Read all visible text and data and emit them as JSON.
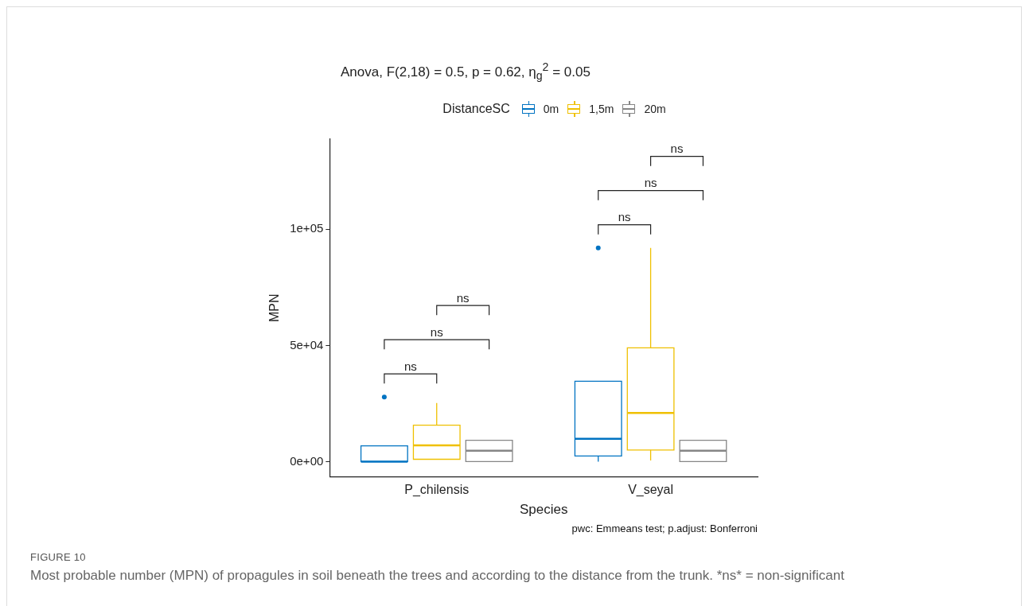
{
  "chart_data": {
    "type": "box",
    "title": "Anova, F(2,18) = 0.5, p = 0.62, η$_{g}$$^{2}$ = 0.05",
    "xlabel": "Species",
    "ylabel": "MPN",
    "legend_title": "DistanceSC",
    "legend": "top",
    "grid": false,
    "categories": [
      "P_chilensis",
      "V_seyal"
    ],
    "series": [
      {
        "name": "0m",
        "color": "#0073c2",
        "boxes": [
          {
            "low": 0,
            "q1": 0,
            "median": 0,
            "q3": 6750,
            "high": 6750,
            "outliers": [
              27800
            ]
          },
          {
            "low": 0,
            "q1": 2400,
            "median": 9800,
            "q3": 34600,
            "high": 34600,
            "outliers": [
              92000
            ]
          }
        ]
      },
      {
        "name": "1,5m",
        "color": "#efc000",
        "boxes": [
          {
            "low": 1000,
            "q1": 1000,
            "median": 7000,
            "q3": 15700,
            "high": 25200
          },
          {
            "low": 500,
            "q1": 5000,
            "median": 20900,
            "q3": 49000,
            "high": 92000
          }
        ]
      },
      {
        "name": "20m",
        "color": "#868686",
        "boxes": [
          {
            "low": 0,
            "q1": 0,
            "median": 4700,
            "q3": 9200,
            "high": 9200
          },
          {
            "low": 0,
            "q1": 0,
            "median": 4700,
            "q3": 9200,
            "high": 9200
          }
        ]
      }
    ],
    "ylim": [
      -6500,
      138800
    ],
    "yticks": [
      {
        "value": 0,
        "label": "0e+00"
      },
      {
        "value": 50000,
        "label": "5e+04"
      },
      {
        "value": 100000,
        "label": "1e+05"
      }
    ],
    "annotations": [
      "ns",
      "ns",
      "ns",
      "ns",
      "ns",
      "ns",
      "pwc: Emmeans test; p.adjust: Bonferroni",
      "FIGURE 10",
      "Most probable number (MPN) of propagules in soil beneath the trees and according to the distance from the trunk. *ns* = non-significant"
    ]
  }
}
